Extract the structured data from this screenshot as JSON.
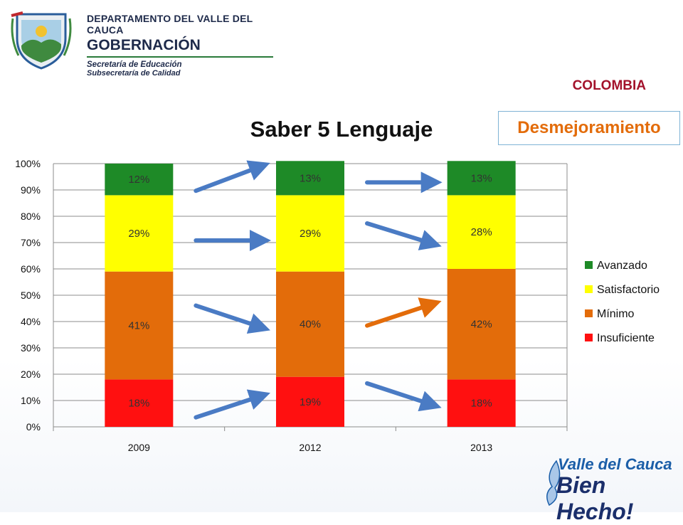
{
  "header": {
    "department": "DEPARTAMENTO DEL VALLE DEL CAUCA",
    "governorship": "GOBERNACIÓN",
    "secretariat": "Secretaría de Educación",
    "subsecretariat": "Subsecretaría de Calidad"
  },
  "country": "COLOMBIA",
  "badge": "Desmejoramiento",
  "footer": {
    "line1": "Valle del Cauca",
    "line2": "Bien Hecho!"
  },
  "colors": {
    "avanzado": "#1e8a27",
    "satisfactorio": "#ffff00",
    "minimo": "#e36c0a",
    "insuficiente": "#ff1010",
    "arrow_blue": "#4a7bc4",
    "arrow_orange": "#e36c0a"
  },
  "chart_data": {
    "type": "bar",
    "stacked": true,
    "title": "Saber 5 Lenguaje",
    "categories": [
      "2009",
      "2012",
      "2013"
    ],
    "series": [
      {
        "name": "Insuficiente",
        "values": [
          18,
          19,
          18
        ],
        "labels": [
          "18%",
          "19%",
          "18%"
        ]
      },
      {
        "name": "Mínimo",
        "values": [
          41,
          40,
          42
        ],
        "labels": [
          "41%",
          "40%",
          "42%"
        ]
      },
      {
        "name": "Satisfactorio",
        "values": [
          29,
          29,
          28
        ],
        "labels": [
          "29%",
          "29%",
          "28%"
        ]
      },
      {
        "name": "Avanzado",
        "values": [
          12,
          13,
          13
        ],
        "labels": [
          "12%",
          "13%",
          "13%"
        ]
      }
    ],
    "legend_order": [
      "Avanzado",
      "Satisfactorio",
      "Mínimo",
      "Insuficiente"
    ],
    "y_ticks": [
      "0%",
      "10%",
      "20%",
      "30%",
      "40%",
      "50%",
      "60%",
      "70%",
      "80%",
      "90%",
      "100%"
    ],
    "ylim": [
      0,
      100
    ],
    "grid": true,
    "legend": "right"
  }
}
